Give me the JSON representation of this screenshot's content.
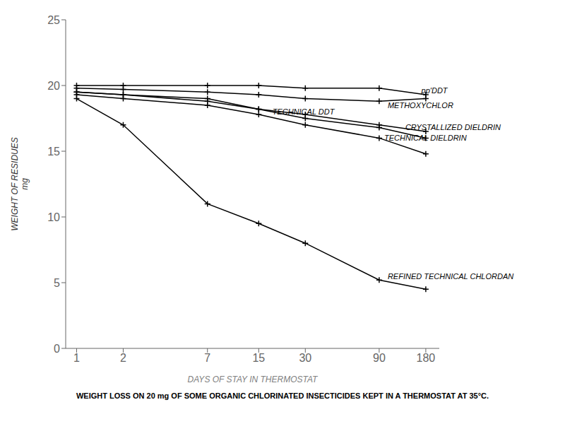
{
  "chart_data": {
    "type": "line",
    "title": "WEIGHT LOSS ON 20 mg OF SOME ORGANIC CHLORINATED INSECTICIDES KEPT IN A THERMOSTAT AT 35°C.",
    "x_label": "DAYS OF STAY IN THERMOSTAT",
    "y_label": "WEIGHT OF RESIDUES\nmg",
    "log": "x",
    "grid": false,
    "marker": "plus",
    "line_style": "solid",
    "x": [
      1,
      2,
      7,
      15,
      30,
      90,
      180
    ],
    "xlim": [
      0.85,
      220
    ],
    "xticks": [
      1,
      2,
      7,
      15,
      30,
      90,
      180
    ],
    "ylim": [
      0,
      25
    ],
    "yticks": [
      0,
      5,
      10,
      15,
      20,
      25
    ],
    "series": [
      {
        "name": "pp'DDT",
        "color": "#000000",
        "values": [
          20.0,
          20.0,
          20.0,
          20.0,
          19.8,
          19.8,
          19.3
        ],
        "label_x": 165,
        "label_y": 19.6
      },
      {
        "name": "METHOXYCHLOR",
        "color": "#000000",
        "values": [
          19.8,
          19.7,
          19.5,
          19.3,
          19.0,
          18.8,
          19.0
        ],
        "label_x": 100,
        "label_y": 18.5
      },
      {
        "name": "TECHNICAL DDT",
        "color": "#000000",
        "values": [
          19.5,
          19.3,
          19.0,
          18.2,
          17.8,
          17.0,
          16.5
        ],
        "label_x": 18,
        "label_y": 18.0
      },
      {
        "name": "CRYSTALLIZED DIELDRIN",
        "color": "#000000",
        "values": [
          19.5,
          19.3,
          18.8,
          18.2,
          17.5,
          16.8,
          16.0
        ],
        "label_x": 130,
        "label_y": 16.8
      },
      {
        "name": "TECHNICAL DIELDRIN",
        "color": "#000000",
        "values": [
          19.3,
          19.0,
          18.5,
          17.8,
          17.0,
          16.0,
          14.8
        ],
        "label_x": 95,
        "label_y": 16.0
      },
      {
        "name": "REFINED TECHNICAL CHLORDAN",
        "color": "#000000",
        "values": [
          19.0,
          17.0,
          11.0,
          9.5,
          8.0,
          5.2,
          4.5
        ],
        "label_x": 100,
        "label_y": 5.5
      }
    ]
  }
}
